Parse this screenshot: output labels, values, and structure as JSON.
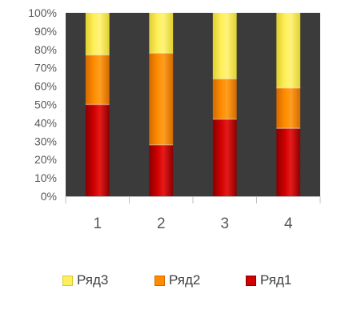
{
  "chart_data": {
    "type": "bar",
    "stacked": "percent",
    "categories": [
      "1",
      "2",
      "3",
      "4"
    ],
    "series": [
      {
        "name": "Ряд1",
        "values": [
          50,
          28,
          42,
          37
        ],
        "color": "#c00000"
      },
      {
        "name": "Ряд2",
        "values": [
          27,
          50,
          22,
          22
        ],
        "color": "#f08000"
      },
      {
        "name": "Ряд3",
        "values": [
          23,
          22,
          36,
          41
        ],
        "color": "#f5e850"
      }
    ],
    "ylim": [
      0,
      100
    ],
    "yticks": [
      "0%",
      "10%",
      "20%",
      "30%",
      "40%",
      "50%",
      "60%",
      "70%",
      "80%",
      "90%",
      "100%"
    ],
    "plot_background": "#3b3b3b",
    "grid": false,
    "legend_position": "bottom",
    "legend_order": [
      "Ряд3",
      "Ряд2",
      "Ряд1"
    ]
  }
}
